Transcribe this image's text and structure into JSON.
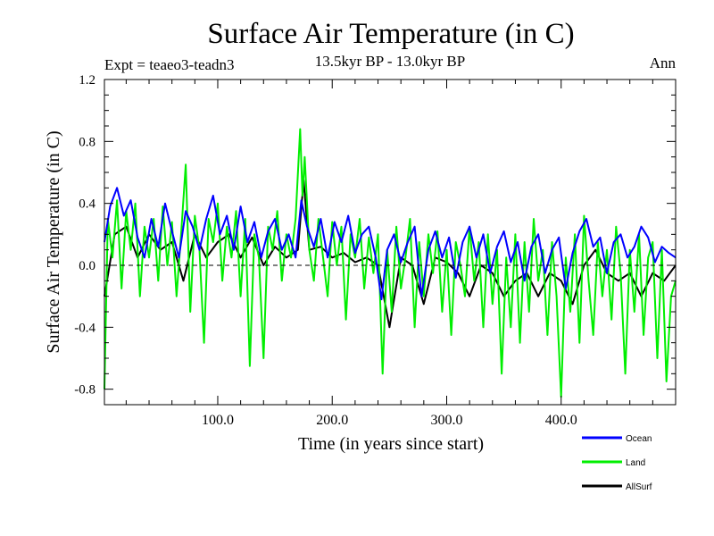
{
  "chart_data": {
    "type": "line",
    "title": "Surface Air Temperature (in C)",
    "subtitle": "13.5kyr BP - 13.0kyr BP",
    "left_label": "Expt = teaeo3-teadn3",
    "right_label": "Ann",
    "xlabel": "Time (in years since start)",
    "ylabel": "Surface Air Temperature (in C)",
    "xlim": [
      1,
      500
    ],
    "ylim": [
      -0.9,
      1.2
    ],
    "x_ticks": [
      100,
      200,
      300,
      400
    ],
    "x_tick_labels": [
      "100.0",
      "200.0",
      "300.0",
      "400.0"
    ],
    "y_ticks": [
      1.2,
      0.8,
      0.4,
      0.0,
      -0.4,
      -0.8
    ],
    "y_tick_labels": [
      "1.2",
      "0.8",
      "0.4",
      "0.0",
      "-0.4",
      "-0.8"
    ],
    "reference_line": 0.0,
    "legend_position": "bottom-right",
    "series": [
      {
        "name": "Ocean",
        "color": "#0000ff",
        "x": [
          1,
          6,
          12,
          18,
          24,
          30,
          36,
          42,
          48,
          54,
          60,
          66,
          72,
          78,
          84,
          90,
          96,
          102,
          108,
          114,
          120,
          126,
          132,
          138,
          144,
          150,
          156,
          162,
          168,
          173,
          178,
          184,
          190,
          196,
          202,
          208,
          214,
          220,
          226,
          232,
          238,
          243,
          248,
          254,
          260,
          266,
          272,
          278,
          284,
          290,
          296,
          302,
          308,
          314,
          320,
          326,
          332,
          338,
          344,
          350,
          356,
          362,
          368,
          374,
          380,
          386,
          392,
          398,
          404,
          410,
          416,
          422,
          428,
          434,
          440,
          446,
          452,
          458,
          464,
          470,
          476,
          482,
          488,
          494,
          500
        ],
        "values": [
          0.15,
          0.38,
          0.5,
          0.32,
          0.42,
          0.18,
          0.05,
          0.3,
          0.12,
          0.4,
          0.22,
          0.05,
          0.35,
          0.25,
          0.1,
          0.3,
          0.45,
          0.2,
          0.32,
          0.1,
          0.38,
          0.15,
          0.28,
          0.05,
          0.22,
          0.3,
          0.1,
          0.2,
          0.05,
          0.42,
          0.25,
          0.12,
          0.3,
          0.05,
          0.28,
          0.15,
          0.32,
          0.08,
          0.2,
          0.25,
          0.05,
          -0.22,
          0.1,
          0.2,
          0.02,
          0.15,
          0.25,
          -0.2,
          0.1,
          0.22,
          0.05,
          0.18,
          -0.08,
          0.15,
          0.25,
          0.05,
          0.2,
          -0.05,
          0.12,
          0.22,
          0.02,
          0.15,
          -0.1,
          0.12,
          0.2,
          -0.05,
          0.1,
          0.18,
          -0.15,
          0.08,
          0.22,
          0.3,
          0.12,
          0.18,
          -0.05,
          0.15,
          0.2,
          0.05,
          0.12,
          0.25,
          0.18,
          0.02,
          0.12,
          0.08,
          0.05
        ]
      },
      {
        "name": "Land",
        "color": "#00ee00",
        "x": [
          1,
          4,
          8,
          12,
          16,
          20,
          24,
          28,
          32,
          36,
          40,
          44,
          48,
          52,
          56,
          60,
          64,
          68,
          72,
          76,
          80,
          84,
          88,
          92,
          96,
          100,
          104,
          108,
          112,
          116,
          120,
          124,
          128,
          132,
          136,
          140,
          144,
          148,
          152,
          156,
          160,
          164,
          168,
          172,
          174,
          176,
          180,
          184,
          188,
          192,
          196,
          200,
          204,
          208,
          212,
          216,
          220,
          224,
          228,
          232,
          236,
          240,
          244,
          248,
          252,
          256,
          260,
          264,
          268,
          272,
          276,
          280,
          284,
          288,
          292,
          296,
          300,
          304,
          308,
          312,
          316,
          320,
          324,
          328,
          332,
          336,
          340,
          344,
          348,
          352,
          356,
          360,
          364,
          368,
          372,
          376,
          380,
          384,
          388,
          392,
          396,
          400,
          404,
          408,
          412,
          416,
          420,
          424,
          428,
          432,
          436,
          440,
          444,
          448,
          452,
          456,
          460,
          464,
          468,
          472,
          476,
          480,
          484,
          488,
          492,
          496,
          500
        ],
        "values": [
          -0.8,
          0.3,
          0.05,
          0.42,
          -0.15,
          0.35,
          0.1,
          0.4,
          -0.2,
          0.25,
          0.05,
          0.3,
          -0.1,
          0.38,
          0.0,
          0.28,
          -0.2,
          0.2,
          0.65,
          -0.3,
          0.32,
          0.1,
          -0.5,
          0.3,
          0.15,
          0.4,
          -0.1,
          0.25,
          0.05,
          0.35,
          -0.2,
          0.3,
          -0.65,
          0.2,
          0.05,
          -0.6,
          0.25,
          0.1,
          0.35,
          -0.1,
          0.2,
          0.05,
          0.3,
          0.88,
          0.45,
          0.7,
          0.1,
          -0.1,
          0.3,
          0.05,
          -0.2,
          0.28,
          0.0,
          0.25,
          -0.35,
          0.2,
          0.05,
          0.3,
          -0.15,
          0.18,
          -0.05,
          0.2,
          -0.7,
          0.1,
          -0.3,
          0.25,
          -0.15,
          0.05,
          0.3,
          -0.4,
          0.15,
          -0.2,
          0.2,
          -0.05,
          0.22,
          -0.3,
          0.1,
          -0.45,
          0.15,
          0.0,
          -0.2,
          0.25,
          -0.1,
          0.15,
          -0.4,
          0.2,
          -0.25,
          0.1,
          -0.7,
          0.05,
          -0.4,
          0.2,
          -0.5,
          0.15,
          -0.3,
          0.3,
          -0.1,
          0.1,
          -0.45,
          0.15,
          -0.2,
          -0.85,
          0.05,
          -0.3,
          0.2,
          -0.5,
          0.32,
          -0.1,
          -0.45,
          0.15,
          -0.2,
          0.1,
          -0.35,
          0.25,
          -0.05,
          -0.7,
          0.1,
          -0.3,
          0.2,
          -0.45,
          0.05,
          0.15,
          -0.6,
          0.1,
          -0.75,
          -0.2,
          -0.1
        ]
      },
      {
        "name": "AllSurf",
        "color": "#000000",
        "x": [
          1,
          10,
          20,
          30,
          40,
          50,
          60,
          70,
          80,
          90,
          100,
          110,
          120,
          130,
          140,
          150,
          160,
          170,
          175,
          180,
          190,
          200,
          210,
          220,
          230,
          240,
          250,
          260,
          270,
          280,
          290,
          300,
          310,
          320,
          330,
          340,
          350,
          360,
          370,
          380,
          390,
          400,
          410,
          420,
          430,
          440,
          450,
          460,
          470,
          480,
          490,
          500
        ],
        "values": [
          -0.2,
          0.2,
          0.25,
          0.05,
          0.2,
          0.1,
          0.15,
          -0.1,
          0.2,
          0.05,
          0.15,
          0.2,
          0.05,
          0.18,
          0.0,
          0.12,
          0.05,
          0.1,
          0.55,
          0.1,
          0.12,
          0.05,
          0.08,
          0.02,
          0.05,
          0.0,
          -0.4,
          0.05,
          0.0,
          -0.25,
          0.05,
          0.02,
          -0.05,
          -0.2,
          0.0,
          -0.05,
          -0.2,
          -0.1,
          -0.05,
          -0.2,
          -0.05,
          -0.1,
          -0.25,
          0.0,
          0.1,
          -0.05,
          -0.1,
          -0.05,
          -0.2,
          -0.05,
          -0.1,
          0.0
        ]
      }
    ]
  }
}
